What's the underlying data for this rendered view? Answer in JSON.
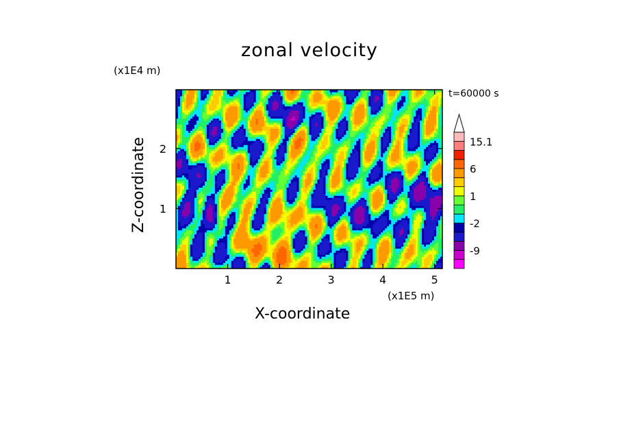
{
  "chart_data": {
    "type": "heatmap",
    "title": "zonal velocity",
    "xlabel": "X-coordinate",
    "ylabel": "Z-coordinate",
    "x_unit": "(x1E5 m)",
    "z_unit": "(x1E4 m)",
    "time_label": "t=60000 s",
    "xlim": [
      0,
      5.15
    ],
    "ylim": [
      0,
      2.98
    ],
    "x_ticks": [
      1,
      2,
      3,
      4,
      5
    ],
    "y_ticks": [
      1,
      2
    ],
    "x_tick_labels": [
      "1",
      "2",
      "3",
      "4",
      "5"
    ],
    "y_tick_labels": [
      "1",
      "2"
    ],
    "colorbar": {
      "levels": [
        -15,
        -12,
        -9,
        -6,
        -3,
        -2,
        -1,
        0,
        1,
        2,
        3,
        6,
        9,
        12,
        15.1
      ],
      "labels": [
        "15.1",
        "6",
        "1",
        "-2",
        "-9"
      ],
      "label_values": [
        15.1,
        6,
        1,
        -2,
        -9
      ],
      "colors": [
        "#ff00ff",
        "#cc00cc",
        "#8800aa",
        "#1a1acc",
        "#0000aa",
        "#00e5ff",
        "#22ee66",
        "#66ff33",
        "#eeff00",
        "#ffcc00",
        "#ff9900",
        "#ff6600",
        "#ee2200",
        "#ff7f7f",
        "#ffbbbb"
      ],
      "extend": "max"
    }
  }
}
